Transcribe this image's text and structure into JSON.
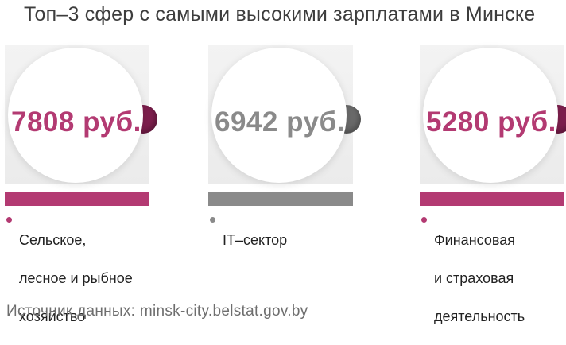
{
  "title": "Топ–3 сфер с самыми высокими зарплатами в Минске",
  "source": "Источник данных: minsk-city.belstat.gov.by",
  "colors": {
    "magenta": "#b33a72",
    "gray": "#888888",
    "dark_magenta": "#7d1f4d"
  },
  "chart_data": {
    "type": "bar",
    "title": "Топ–3 сфер с самыми высокими зарплатами в Минске",
    "categories": [
      "Сельское, лесное и рыбное хозяйство",
      "IT–сектор",
      "Финансовая и страховая деятельность"
    ],
    "values": [
      7808,
      6942,
      5280
    ],
    "unit": "руб.",
    "value_labels": [
      "7808 руб.",
      "6942 руб.",
      "5280 руб."
    ],
    "label_lines": [
      [
        "Сельское,",
        "лесное и рыбное",
        "хозяйство"
      ],
      [
        "IT–сектор"
      ],
      [
        "Финансовая",
        "и страховая",
        "деятельность"
      ]
    ]
  }
}
